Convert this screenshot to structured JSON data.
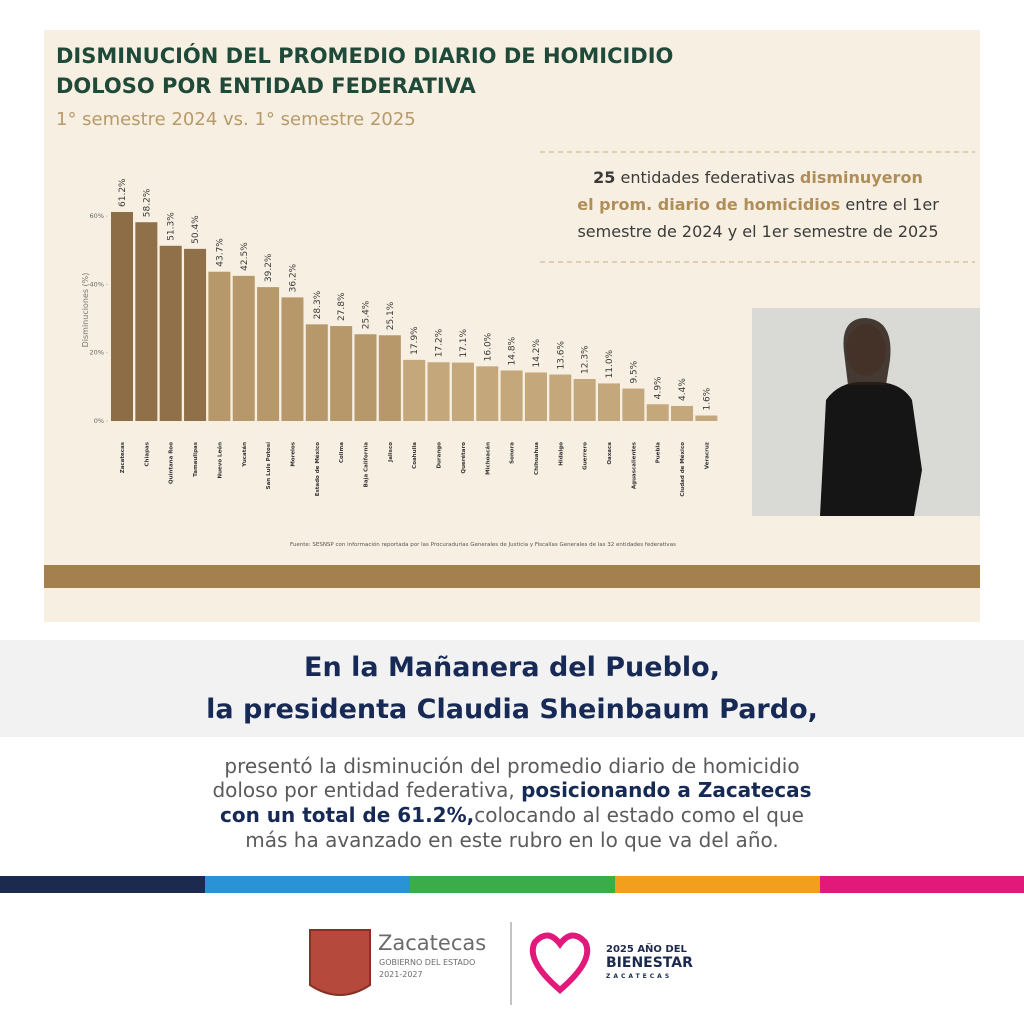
{
  "chart_data": {
    "type": "bar",
    "title": [
      "DISMINUCIÓN DEL PROMEDIO DIARIO DE HOMICIDIO",
      "DOLOSO POR ENTIDAD FEDERATIVA"
    ],
    "subtitle": "1° semestre 2024 vs. 1° semestre 2025",
    "y_label": "Disminuciones (%)",
    "categories": [
      "Zacatecas",
      "Chiapas",
      "Quintana Roo",
      "Tamaulipas",
      "Nuevo León",
      "Yucatán",
      "San Luis Potosí",
      "Morelos",
      "Estado de México",
      "Colima",
      "Baja California",
      "Jalisco",
      "Coahuila",
      "Durango",
      "Querétaro",
      "Michoacán",
      "Sonora",
      "Chihuahua",
      "Hidalgo",
      "Guerrero",
      "Oaxaca",
      "Aguascalientes",
      "Puebla",
      "Ciudad de México",
      "Veracruz"
    ],
    "values": [
      61.2,
      58.2,
      51.3,
      50.4,
      43.7,
      42.5,
      39.2,
      36.2,
      28.3,
      27.8,
      25.4,
      25.1,
      17.9,
      17.2,
      17.1,
      16.0,
      14.8,
      14.2,
      13.6,
      12.3,
      11.0,
      9.5,
      4.9,
      4.4,
      1.6
    ],
    "value_labels": [
      "61.2%",
      "58.2%",
      "51.3%",
      "50.4%",
      "43.7%",
      "42.5%",
      "39.2%",
      "36.2%",
      "28.3%",
      "27.8%",
      "25.4%",
      "25.1%",
      "17.9%",
      "17.2%",
      "17.1%",
      "16.0%",
      "14.8%",
      "14.2%",
      "13.6%",
      "12.3%",
      "11.0%",
      "9.5%",
      "4.9%",
      "4.4%",
      "1.6%"
    ],
    "colors": [
      "#8c6d45",
      "#8f7049",
      "#8f7049",
      "#8f7049",
      "#b7986a",
      "#b7986a",
      "#b7986a",
      "#b7986a",
      "#b7986a",
      "#b7986a",
      "#b7986a",
      "#b7986a",
      "#c4a77a",
      "#c4a77a",
      "#c4a77a",
      "#c4a77a",
      "#c4a77a",
      "#c4a77a",
      "#c4a77a",
      "#c4a77a",
      "#c4a77a",
      "#c4a77a",
      "#c4a77a",
      "#c4a77a",
      "#c4a77a"
    ],
    "ylim": [
      0,
      65
    ],
    "yticks": [
      {
        "value": 0,
        "label": "0%"
      },
      {
        "value": 20,
        "label": "20%"
      },
      {
        "value": 40,
        "label": "40%"
      },
      {
        "value": 60,
        "label": "60%"
      }
    ],
    "callout": [
      [
        "25",
        " entidades federativas ",
        "disminuyeron"
      ],
      [
        "el prom. diario de homicidios",
        " entre el 1er"
      ],
      [
        "semestre de 2024 y el 1er semestre de 2025"
      ]
    ],
    "source": "Fuente: SESNSP con información reportada por las Procuradurías Generales de Justicia y Fiscalías Generales de las 32 entidades federativas"
  },
  "post": {
    "headline": [
      "En la Mañanera del Pueblo,",
      "la presidenta Claudia Sheinbaum Pardo,"
    ],
    "body": [
      [
        "presentó la disminución del promedio diario de homicidio"
      ],
      [
        "doloso por entidad federativa, ",
        "posicionando a Zacatecas"
      ],
      [
        "con un total de 61.2%,",
        "colocando al estado como el que"
      ],
      [
        "más ha avanzado en este rubro en lo que va del año."
      ]
    ]
  },
  "footer": {
    "logo_left": [
      "Zacatecas",
      "GOBIERNO DEL ESTADO",
      "2021-2027"
    ],
    "logo_right": [
      "2025 AÑO DEL",
      "BIENESTAR",
      "ZACATECAS"
    ]
  }
}
